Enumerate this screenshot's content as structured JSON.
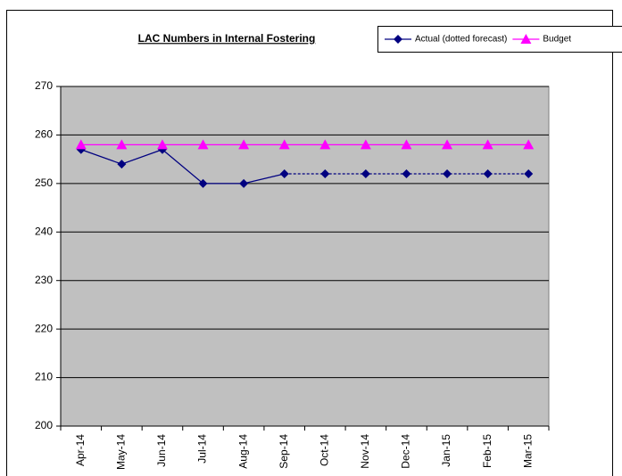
{
  "chart_data": {
    "type": "line",
    "title": "LAC Numbers in Internal Fostering",
    "categories": [
      "Apr-14",
      "May-14",
      "Jun-14",
      "Jul-14",
      "Aug-14",
      "Sep-14",
      "Oct-14",
      "Nov-14",
      "Dec-14",
      "Jan-15",
      "Feb-15",
      "Mar-15"
    ],
    "series": [
      {
        "name": "Actual (dotted forecast)",
        "color": "#000080",
        "marker": "diamond",
        "dotted_from": "Sep-14",
        "values": [
          257,
          254,
          257,
          250,
          250,
          252,
          252,
          252,
          252,
          252,
          252,
          252
        ]
      },
      {
        "name": "Budget",
        "color": "#ff00ff",
        "marker": "triangle",
        "values": [
          258,
          258,
          258,
          258,
          258,
          258,
          258,
          258,
          258,
          258,
          258,
          258
        ]
      }
    ],
    "ylim": [
      200,
      270
    ],
    "yticks": [
      200,
      210,
      220,
      230,
      240,
      250,
      260,
      270
    ],
    "grid": true,
    "plot_background": "#c0c0c0",
    "legend": "top-right"
  }
}
